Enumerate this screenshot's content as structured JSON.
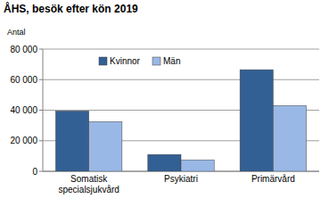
{
  "chart_data": {
    "type": "bar",
    "title": "ÅHS, besök efter kön 2019",
    "y_label": "Antal",
    "categories": [
      "Somatisk specialsjukvård",
      "Psykiatri",
      "Primärvård"
    ],
    "series": [
      {
        "name": "Kvinnor",
        "color": "#336094",
        "values": [
          39500,
          11000,
          66500
        ]
      },
      {
        "name": "Män",
        "color": "#99b8e6",
        "values": [
          32500,
          7500,
          43000
        ]
      }
    ],
    "ylim": [
      0,
      80000
    ],
    "yticks": [
      0,
      {
        "value": 20000,
        "label": "20 000"
      },
      {
        "value": 40000,
        "label": "40 000"
      },
      {
        "value": 60000,
        "label": "60 000"
      },
      {
        "value": 80000,
        "label": "80 000"
      }
    ],
    "grid": true,
    "legend": "upper left"
  }
}
